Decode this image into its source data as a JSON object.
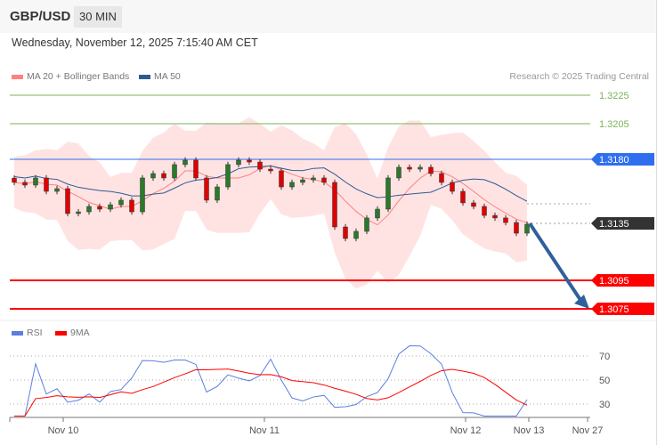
{
  "header": {
    "symbol": "GBP/USD",
    "timeframe": "30 MIN",
    "datetime": "Wednesday, November 12, 2025 7:15:40 AM CET",
    "credit": "Research © 2025 Trading Central"
  },
  "legend": {
    "ma20": "MA 20 + Bollinger Bands",
    "ma50": "MA 50",
    "rsi": "RSI",
    "rsi_ma": "9MA"
  },
  "colors": {
    "ma20": "#ff8080",
    "ma50": "#2e5a94",
    "up": "#2a7a2a",
    "down": "#e00000",
    "resistance": "#2f6fef",
    "support": "#ff0000",
    "target_green": "#7bb35a",
    "arrow": "#30609c",
    "rsi": "#5b7fe0",
    "rsi_ma": "#ff0000"
  },
  "chart_data": {
    "type": "candlestick",
    "price_levels": [
      {
        "label": "1.3225",
        "value": 1.3225,
        "kind": "green"
      },
      {
        "label": "1.3205",
        "value": 1.3205,
        "kind": "green"
      },
      {
        "label": "1.3180",
        "value": 1.318,
        "kind": "resistance"
      },
      {
        "label": "1.3135",
        "value": 1.3135,
        "kind": "last"
      },
      {
        "label": "1.3095",
        "value": 1.3095,
        "kind": "support"
      },
      {
        "label": "1.3075",
        "value": 1.3075,
        "kind": "support"
      }
    ],
    "closes": [
      1.31638,
      1.31619,
      1.31669,
      1.31575,
      1.31594,
      1.31419,
      1.31431,
      1.31469,
      1.3145,
      1.31481,
      1.31513,
      1.31431,
      1.31669,
      1.317,
      1.31669,
      1.31763,
      1.31794,
      1.31669,
      1.31513,
      1.31606,
      1.31763,
      1.31794,
      1.31781,
      1.31731,
      1.31719,
      1.31606,
      1.31638,
      1.31656,
      1.31669,
      1.31638,
      1.31325,
      1.31244,
      1.31294,
      1.31388,
      1.3145,
      1.31669,
      1.31744,
      1.31731,
      1.31744,
      1.317,
      1.31638,
      1.31575,
      1.31494,
      1.31469,
      1.31406,
      1.31388,
      1.31356,
      1.31281,
      1.31344
    ],
    "x_ticks": [
      "Nov 10",
      "Nov 11",
      "Nov 12",
      "Nov 13",
      "Nov 27"
    ],
    "rsi_ticks": [
      "70",
      "50",
      "30"
    ],
    "forecast": {
      "from": 1.3135,
      "to": 1.3075
    }
  }
}
